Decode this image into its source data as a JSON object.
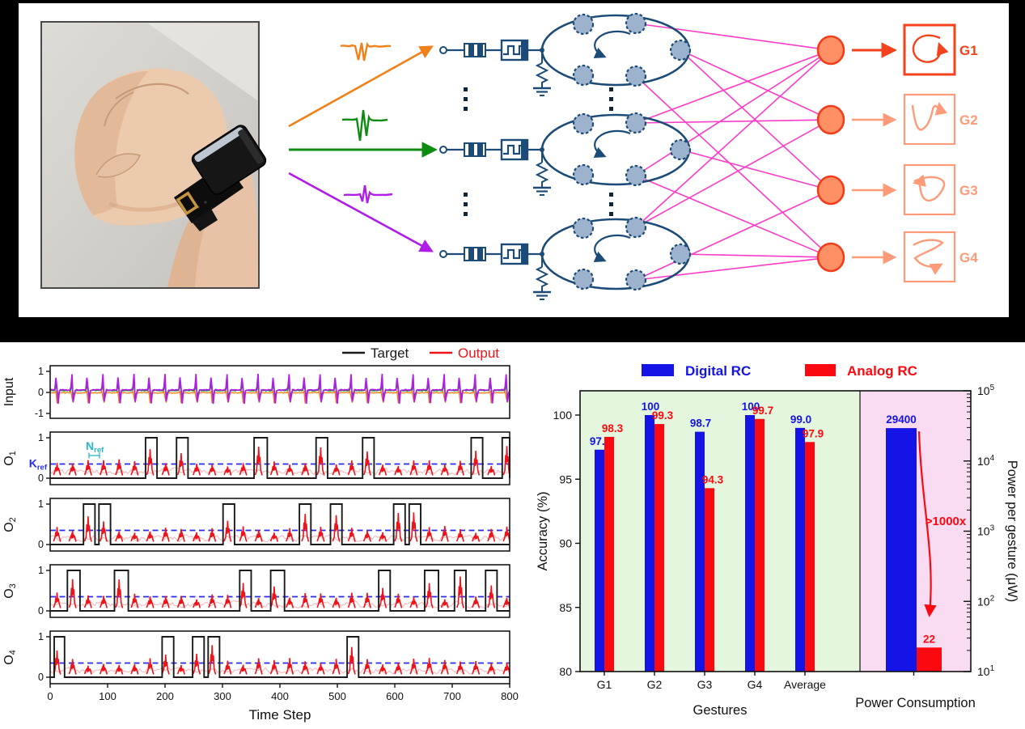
{
  "scene": {
    "background": "#000000",
    "panel_bg": "#ffffff"
  },
  "top_diagram": {
    "photo": {
      "name": "fist-with-wristband-photo"
    },
    "input_signals": [
      {
        "name": "sensor-channel-1",
        "color": "#f08119"
      },
      {
        "name": "sensor-channel-2",
        "color": "#0e8c12"
      },
      {
        "name": "sensor-channel-3",
        "color": "#b01de8"
      }
    ],
    "circuit": {
      "line_color": "#1c4b77",
      "node_fill": "#9db2cc",
      "dots_color": "#10243c"
    },
    "connection_color": "#fb3cc8",
    "neurons": {
      "fill": "#ff9065",
      "stroke": "#f23d1a"
    },
    "gesture_outputs": [
      {
        "label": "G1",
        "color": "#f4431c"
      },
      {
        "label": "G2",
        "color": "#ff9b78"
      },
      {
        "label": "G3",
        "color": "#ff9b78"
      },
      {
        "label": "G4",
        "color": "#ff9b78"
      }
    ]
  },
  "timeseries": {
    "legend": [
      {
        "label": "Target",
        "color": "#1a1a1a"
      },
      {
        "label": "Output",
        "color": "#ee1318"
      }
    ],
    "xlabel": "Time Step",
    "xticks": [
      0,
      100,
      200,
      300,
      400,
      500,
      600,
      700,
      800
    ],
    "xlim": [
      0,
      800
    ],
    "threshold": {
      "label": "K",
      "sub": "ref",
      "value": 0.35,
      "color": "#2a2af0"
    },
    "nref": {
      "label": "N",
      "sub": "ref",
      "color": "#27b6c8"
    },
    "noise_color": "#f8b9bc",
    "output_color": "#ee1318",
    "target_color": "#1a1a1a",
    "noise_seed": 20240613,
    "event_times": [
      12,
      39,
      66,
      93,
      120,
      147,
      174,
      201,
      228,
      255,
      282,
      309,
      336,
      363,
      390,
      417,
      444,
      471,
      498,
      525,
      552,
      579,
      606,
      633,
      660,
      687,
      714,
      741,
      768,
      795
    ],
    "panels": [
      {
        "label": "Input",
        "sub": "",
        "yticks": [
          "1",
          "0",
          "-1"
        ],
        "pulses": []
      },
      {
        "label": "O",
        "sub": "1",
        "yticks": [
          "1",
          "0"
        ],
        "pulses": [
          [
            166,
            186
          ],
          [
            220,
            240
          ],
          [
            355,
            378
          ],
          [
            463,
            483
          ],
          [
            544,
            564
          ],
          [
            733,
            753
          ],
          [
            787,
            800
          ]
        ]
      },
      {
        "label": "O",
        "sub": "2",
        "yticks": [
          "1",
          "0"
        ],
        "pulses": [
          [
            58,
            78
          ],
          [
            85,
            105
          ],
          [
            301,
            321
          ],
          [
            434,
            454
          ],
          [
            488,
            508
          ],
          [
            598,
            618
          ],
          [
            625,
            645
          ]
        ]
      },
      {
        "label": "O",
        "sub": "3",
        "yticks": [
          "1",
          "0"
        ],
        "pulses": [
          [
            30,
            52
          ],
          [
            112,
            136
          ],
          [
            330,
            350
          ],
          [
            384,
            408
          ],
          [
            572,
            592
          ],
          [
            652,
            676
          ],
          [
            704,
            724
          ],
          [
            758,
            778
          ]
        ]
      },
      {
        "label": "O",
        "sub": "4",
        "yticks": [
          "1",
          "0"
        ],
        "pulses": [
          [
            7,
            25
          ],
          [
            195,
            215
          ],
          [
            248,
            268
          ],
          [
            275,
            295
          ],
          [
            517,
            537
          ]
        ]
      }
    ]
  },
  "chart_data": {
    "type": "bar",
    "categories": [
      "G1",
      "G2",
      "G3",
      "G4",
      "Average",
      "Power Consumption"
    ],
    "series": [
      {
        "name": "Digital RC",
        "color": "#1414e6",
        "accuracy": [
          97.3,
          100,
          98.7,
          100,
          99.0
        ],
        "power_uW": 29400
      },
      {
        "name": "Analog RC",
        "color": "#fa0a10",
        "accuracy": [
          98.3,
          99.3,
          94.3,
          99.7,
          97.9
        ],
        "power_uW": 22
      }
    ],
    "value_labels": {
      "digital": [
        "97.3",
        "100",
        "98.7",
        "100",
        "99.0",
        "29400"
      ],
      "analog": [
        "98.3",
        "99.3",
        "94.3",
        "99.7",
        "97.9",
        "22"
      ]
    },
    "xlabel": "Gestures",
    "power_xlabel": "Power Consumption",
    "ylabel_left": "Accuracy (%)",
    "ylabel_right": "Power per gesture (μW)",
    "yticks_left": [
      "80",
      "85",
      "90",
      "95",
      "100"
    ],
    "ylim_left": [
      80,
      102
    ],
    "log_base": "10",
    "yticks_right_exponents": [
      1,
      2,
      3,
      4,
      5
    ],
    "annotation": {
      "text": ">1000x",
      "color": "#fa0a10"
    },
    "regions": {
      "accuracy_bg": "#e4f6de",
      "power_bg": "#fadcf2"
    },
    "legend_position": "top"
  }
}
